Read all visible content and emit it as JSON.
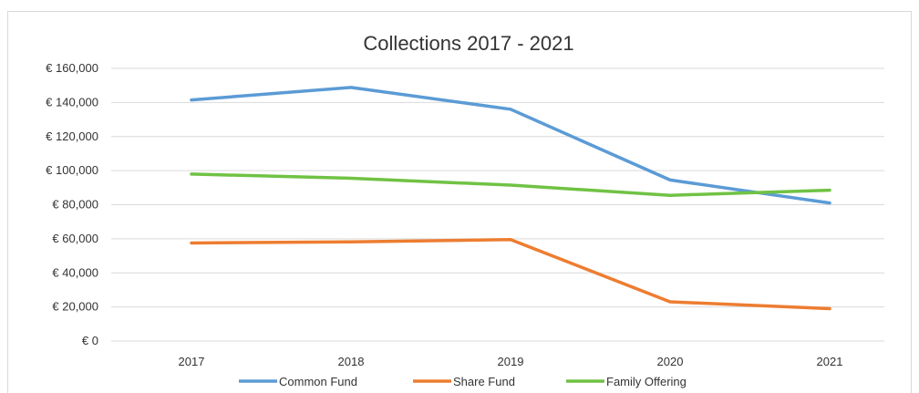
{
  "chart_data": {
    "type": "line",
    "title": "Collections 2017 - 2021",
    "categories": [
      "2017",
      "2018",
      "2019",
      "2020",
      "2021"
    ],
    "ylim": [
      0,
      160000
    ],
    "yticks": [
      0,
      20000,
      40000,
      60000,
      80000,
      100000,
      120000,
      140000,
      160000
    ],
    "ytick_labels": [
      "€ 0",
      "€ 20,000",
      "€ 40,000",
      "€ 60,000",
      "€ 80,000",
      "€ 100,000",
      "€ 120,000",
      "€ 140,000",
      "€ 160,000"
    ],
    "grid": true,
    "legend": "bottom",
    "series": [
      {
        "name": "Common Fund",
        "color": "#5b9bd5",
        "values": [
          141500,
          148800,
          136000,
          94500,
          81000
        ]
      },
      {
        "name": "Share Fund",
        "color": "#ed7d31",
        "values": [
          57500,
          58200,
          59500,
          23000,
          19000
        ]
      },
      {
        "name": "Family Offering",
        "color": "#70c244",
        "values": [
          98000,
          95500,
          91500,
          85500,
          88500
        ]
      }
    ]
  }
}
